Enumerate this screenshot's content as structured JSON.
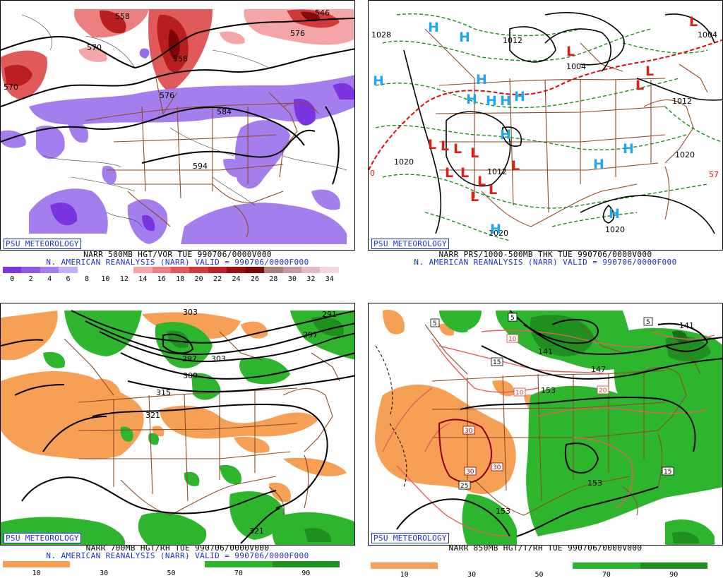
{
  "badge": "PSU METEOROLOGY",
  "panels": {
    "p1": {
      "line1": "NARR 500MB HGT/VOR TUE 990706/0000V000",
      "line2": "N. AMERICAN REANALYSIS (NARR) VALID = 990706/0000F000",
      "contour_labels": [
        "558",
        "570",
        "558",
        "570",
        "546",
        "576",
        "576",
        "584",
        "594"
      ],
      "colorbar": {
        "ticks": [
          "0",
          "2",
          "4",
          "6",
          "8",
          "10",
          "12",
          "14",
          "16",
          "18",
          "20",
          "22",
          "24",
          "26",
          "28",
          "30",
          "32",
          "34"
        ],
        "colors": [
          "#7a35e0",
          "#8e58e6",
          "#a47eec",
          "#c4aef4",
          "#ffffff",
          "#ffffff",
          "#ffffff",
          "#f4a6a6",
          "#ec8080",
          "#e05a5a",
          "#d23a3a",
          "#bb1f1f",
          "#9a0f0f",
          "#7a0606",
          "#a87f80",
          "#c79aa2",
          "#e2b8c4",
          "#f6d6de"
        ]
      }
    },
    "p2": {
      "line1": "NARR PRS/1000-500MB THK TUE 990706/0000V000",
      "line2": "N. AMERICAN REANALYSIS (NARR) VALID = 990706/0000F000",
      "pressure_labels": [
        "1028",
        "1012",
        "1004",
        "1004",
        "1012",
        "1020",
        "1020",
        "1012",
        "1020",
        "1020"
      ],
      "thickness_labels": [
        "0",
        "57"
      ],
      "highs": [
        "H",
        "H",
        "H",
        "H",
        "H",
        "H",
        "H",
        "H",
        "H",
        "H",
        "H",
        "H",
        "H"
      ],
      "lows": [
        "L",
        "L",
        "L",
        "L",
        "L",
        "L",
        "L",
        "L",
        "L",
        "L",
        "L",
        "L",
        "L",
        "L"
      ]
    },
    "p3": {
      "line1": "NARR 700MB HGT/RH TUE 990706/0000V000",
      "line2": "N. AMERICAN REANALYSIS (NARR) VALID = 990706/0000F000",
      "contour_labels": [
        "303",
        "291",
        "297",
        "297",
        "303",
        "309",
        "315",
        "321",
        "321"
      ],
      "colorbar": {
        "ticks": [
          "10",
          "30",
          "50",
          "70",
          "90"
        ],
        "colors": [
          "#f5a055",
          "#f5a055",
          "#ffffff",
          "#ffffff",
          "#ffffff",
          "#ffffff",
          "#2eb52e",
          "#2eb52e",
          "#1f8f1f",
          "#1f8f1f"
        ]
      }
    },
    "p4": {
      "line1": "NARR 850MB HGT/T/RH TUE 990706/0000V000",
      "line2": "",
      "height_labels": [
        "141",
        "141",
        "147",
        "153",
        "153",
        "153"
      ],
      "temp_labels": [
        "5",
        "5",
        "5",
        "15",
        "10",
        "10",
        "20",
        "30",
        "30",
        "30",
        "25",
        "15"
      ],
      "colorbar": {
        "ticks": [
          "10",
          "30",
          "50",
          "70",
          "90"
        ],
        "colors": [
          "#f5a055",
          "#f5a055",
          "#ffffff",
          "#ffffff",
          "#ffffff",
          "#ffffff",
          "#2eb52e",
          "#2eb52e",
          "#1f8f1f",
          "#1f8f1f"
        ]
      }
    }
  },
  "colors": {
    "state_lines": "#8b4a25",
    "contour": "#000000",
    "caption_blue": "#1b2fd0",
    "high_marker": "#22a8e8",
    "low_marker": "#e01f10",
    "thickness_line": "#1a8a1a",
    "thickness_red": "#d80c0c",
    "rh_dry": "#f5a055",
    "rh_moist": "#2eb52e",
    "temp_line": "#e06060"
  }
}
